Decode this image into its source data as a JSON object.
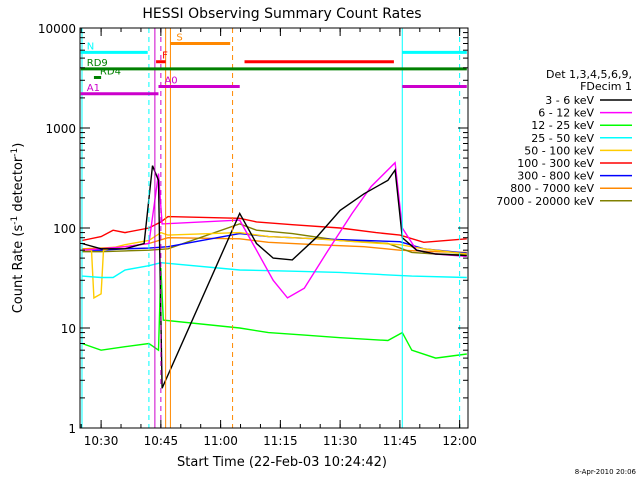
{
  "chart_data": {
    "type": "line",
    "title": "HESSI Observing Summary Count Rates",
    "xlabel": "Start Time (22-Feb-03 10:24:42)",
    "ylabel_main": "Count Rate (s",
    "ylabel_sup1": "-1",
    "ylabel_mid": " detector",
    "ylabel_sup2": "-1",
    "ylabel_end": ")",
    "xlim": [
      10.4117,
      12.035
    ],
    "ylim": [
      1,
      10000
    ],
    "yscale": "log",
    "x_ticks": [
      {
        "value": 10.5,
        "label": "10:30"
      },
      {
        "value": 10.75,
        "label": "10:45"
      },
      {
        "value": 11.0,
        "label": "11:00"
      },
      {
        "value": 11.25,
        "label": "11:15"
      },
      {
        "value": 11.5,
        "label": "11:30"
      },
      {
        "value": 11.75,
        "label": "11:45"
      },
      {
        "value": 12.0,
        "label": "12:00"
      }
    ],
    "y_ticks": [
      {
        "value": 1,
        "label": "1"
      },
      {
        "value": 10,
        "label": "10"
      },
      {
        "value": 100,
        "label": "100"
      },
      {
        "value": 1000,
        "label": "1000"
      },
      {
        "value": 10000,
        "label": "10000"
      }
    ],
    "legend": {
      "placement": "right",
      "header": [
        "Det 1,3,4,5,6,9,",
        "FDecim 1"
      ],
      "entries": [
        {
          "label": "3 - 6 keV",
          "color": "#000000"
        },
        {
          "label": "6 - 12 keV",
          "color": "#ff00ff"
        },
        {
          "label": "12 - 25 keV",
          "color": "#00ff00"
        },
        {
          "label": "25 - 50 keV",
          "color": "#00ffff"
        },
        {
          "label": "50 - 100 keV",
          "color": "#ffcc00"
        },
        {
          "label": "100 - 300 keV",
          "color": "#ff0000"
        },
        {
          "label": "300 - 800 keV",
          "color": "#0000ff"
        },
        {
          "label": "800 - 7000 keV",
          "color": "#ff8800"
        },
        {
          "label": "7000 - 20000 keV",
          "color": "#808000"
        }
      ]
    },
    "series": [
      {
        "color": "#ff8800",
        "points": [
          [
            10.42,
            62
          ],
          [
            10.5,
            63
          ],
          [
            10.6,
            65
          ],
          [
            10.7,
            70
          ],
          [
            10.78,
            80
          ],
          [
            11.08,
            78
          ],
          [
            11.2,
            72
          ],
          [
            11.4,
            68
          ],
          [
            11.6,
            65
          ],
          [
            11.75,
            60
          ],
          [
            11.9,
            58
          ],
          [
            12.03,
            57
          ]
        ]
      },
      {
        "color": "#808000",
        "points": [
          [
            10.42,
            58
          ],
          [
            10.5,
            58
          ],
          [
            10.6,
            59
          ],
          [
            10.7,
            60
          ],
          [
            10.78,
            62
          ],
          [
            11.08,
            110
          ],
          [
            11.15,
            95
          ],
          [
            11.3,
            88
          ],
          [
            11.5,
            75
          ],
          [
            11.7,
            70
          ],
          [
            11.8,
            57
          ],
          [
            11.9,
            55
          ],
          [
            12.03,
            54
          ]
        ]
      },
      {
        "color": "#ff0000",
        "points": [
          [
            10.42,
            75
          ],
          [
            10.5,
            82
          ],
          [
            10.55,
            95
          ],
          [
            10.6,
            90
          ],
          [
            10.7,
            100
          ],
          [
            10.75,
            115
          ],
          [
            10.78,
            130
          ],
          [
            11.08,
            125
          ],
          [
            11.15,
            115
          ],
          [
            11.3,
            108
          ],
          [
            11.5,
            100
          ],
          [
            11.65,
            90
          ],
          [
            11.75,
            85
          ],
          [
            11.85,
            72
          ],
          [
            12.03,
            78
          ]
        ]
      },
      {
        "color": "#0000ff",
        "points": [
          [
            10.42,
            60
          ],
          [
            10.5,
            60
          ],
          [
            10.6,
            62
          ],
          [
            10.7,
            63
          ],
          [
            10.78,
            65
          ],
          [
            11.08,
            88
          ],
          [
            11.2,
            82
          ],
          [
            11.4,
            78
          ],
          [
            11.6,
            75
          ],
          [
            11.75,
            73
          ],
          [
            11.85,
            62
          ],
          [
            12.03,
            56
          ]
        ]
      },
      {
        "color": "#ffcc00",
        "points": [
          [
            10.42,
            60
          ],
          [
            10.46,
            60
          ],
          [
            10.47,
            20
          ],
          [
            10.5,
            22
          ],
          [
            10.51,
            60
          ],
          [
            10.6,
            68
          ],
          [
            10.7,
            75
          ],
          [
            10.75,
            90
          ],
          [
            10.78,
            85
          ],
          [
            11.08,
            90
          ],
          [
            11.2,
            82
          ],
          [
            11.4,
            78
          ],
          [
            11.6,
            72
          ],
          [
            11.75,
            68
          ],
          [
            11.85,
            62
          ],
          [
            12.03,
            55
          ]
        ]
      },
      {
        "color": "#00ffff",
        "points": [
          [
            10.42,
            33
          ],
          [
            10.5,
            32
          ],
          [
            10.55,
            32
          ],
          [
            10.6,
            38
          ],
          [
            10.7,
            42
          ],
          [
            10.75,
            45
          ],
          [
            11.08,
            38
          ],
          [
            11.3,
            37
          ],
          [
            11.5,
            36
          ],
          [
            11.7,
            34
          ],
          [
            11.8,
            33
          ],
          [
            12.03,
            32
          ]
        ]
      },
      {
        "color": "#00ff00",
        "points": [
          [
            10.42,
            7
          ],
          [
            10.5,
            6
          ],
          [
            10.6,
            6.5
          ],
          [
            10.7,
            7
          ],
          [
            10.74,
            6
          ],
          [
            10.75,
            40
          ],
          [
            10.76,
            12
          ],
          [
            11.08,
            10
          ],
          [
            11.2,
            9
          ],
          [
            11.35,
            8.5
          ],
          [
            11.5,
            8
          ],
          [
            11.7,
            7.5
          ],
          [
            11.76,
            9
          ],
          [
            11.8,
            6
          ],
          [
            11.9,
            5
          ],
          [
            12.03,
            5.5
          ]
        ]
      },
      {
        "color": "#ff00ff",
        "points": [
          [
            10.42,
            60
          ],
          [
            10.5,
            62
          ],
          [
            10.6,
            65
          ],
          [
            10.7,
            70
          ],
          [
            10.74,
            350
          ],
          [
            10.755,
            110
          ],
          [
            11.08,
            120
          ],
          [
            11.15,
            60
          ],
          [
            11.22,
            30
          ],
          [
            11.28,
            20
          ],
          [
            11.35,
            25
          ],
          [
            11.45,
            60
          ],
          [
            11.55,
            140
          ],
          [
            11.63,
            260
          ],
          [
            11.73,
            450
          ],
          [
            11.76,
            100
          ],
          [
            11.82,
            60
          ],
          [
            11.9,
            55
          ],
          [
            12.03,
            52
          ]
        ]
      },
      {
        "color": "#000000",
        "points": [
          [
            10.42,
            70
          ],
          [
            10.5,
            62
          ],
          [
            10.6,
            62
          ],
          [
            10.68,
            70
          ],
          [
            10.715,
            420
          ],
          [
            10.74,
            300
          ],
          [
            10.755,
            2.5
          ],
          [
            11.08,
            140
          ],
          [
            11.15,
            70
          ],
          [
            11.22,
            50
          ],
          [
            11.3,
            48
          ],
          [
            11.4,
            80
          ],
          [
            11.5,
            150
          ],
          [
            11.6,
            220
          ],
          [
            11.7,
            300
          ],
          [
            11.73,
            380
          ],
          [
            11.76,
            80
          ],
          [
            11.82,
            60
          ],
          [
            11.9,
            55
          ],
          [
            12.03,
            53
          ]
        ]
      }
    ],
    "status_bars": [
      {
        "label": "N",
        "color": "#00ffff",
        "y": 5700,
        "ranges": [
          [
            10.415,
            10.695
          ],
          [
            11.76,
            12.03
          ]
        ]
      },
      {
        "label": "S",
        "color": "#ff8800",
        "y": 7000,
        "ranges": [
          [
            10.79,
            11.04
          ]
        ]
      },
      {
        "label": "F",
        "color": "#ff0000",
        "y": 4600,
        "ranges": [
          [
            10.73,
            10.77
          ],
          [
            11.1,
            11.725
          ]
        ]
      },
      {
        "label": "RD9",
        "color": "#008000",
        "y": 3900,
        "ranges": [
          [
            10.415,
            12.03
          ]
        ]
      },
      {
        "label": "RD4",
        "color": "#008000",
        "y": 3200,
        "ranges": [
          [
            10.47,
            10.5
          ]
        ]
      },
      {
        "label": "A0",
        "color": "#cc00cc",
        "y": 2600,
        "ranges": [
          [
            10.74,
            11.08
          ],
          [
            11.76,
            12.03
          ]
        ]
      },
      {
        "label": "A1",
        "color": "#cc00cc",
        "y": 2200,
        "ranges": [
          [
            10.415,
            10.74
          ]
        ]
      }
    ],
    "event_lines": [
      {
        "x": 10.42,
        "color": "#00ffff",
        "style": "solid"
      },
      {
        "x": 10.7,
        "color": "#00ffff",
        "style": "dashed"
      },
      {
        "x": 10.725,
        "color": "#cc00cc",
        "style": "solid"
      },
      {
        "x": 10.75,
        "color": "#cc00cc",
        "style": "dashed"
      },
      {
        "x": 10.77,
        "color": "#ff8800",
        "style": "solid"
      },
      {
        "x": 10.79,
        "color": "#ff8800",
        "style": "solid"
      },
      {
        "x": 11.05,
        "color": "#ff8800",
        "style": "dashed"
      },
      {
        "x": 11.76,
        "color": "#00ffff",
        "style": "solid"
      },
      {
        "x": 12.0,
        "color": "#00ffff",
        "style": "dashed"
      }
    ]
  },
  "footer": {
    "date_stamp": "8-Apr-2010 20:06"
  }
}
